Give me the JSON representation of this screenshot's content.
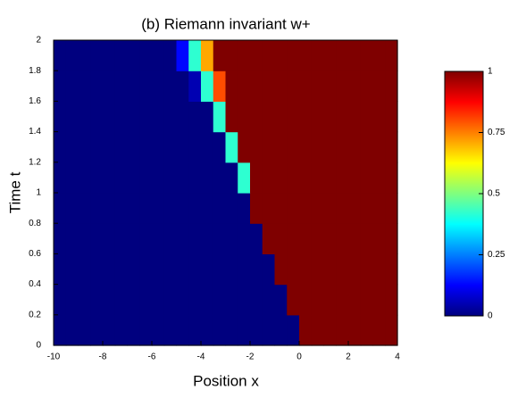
{
  "chart_data": {
    "type": "heatmap",
    "title": "(b) Riemann invariant w+",
    "x_label": "Position x",
    "y_label": "Time t",
    "xlim": [
      -10,
      4
    ],
    "ylim": [
      0,
      2
    ],
    "xticks": [
      -10,
      -8,
      -6,
      -4,
      -2,
      0,
      2,
      4
    ],
    "yticks": [
      0,
      0.2,
      0.4,
      0.6,
      0.8,
      1,
      1.2,
      1.4,
      1.6,
      1.8,
      2
    ],
    "colormap": [
      "#00007f",
      "#0000ff",
      "#007fff",
      "#00ffff",
      "#7fff7f",
      "#ffff00",
      "#ff7f00",
      "#ff0000",
      "#7f0000"
    ],
    "colorbar": {
      "lim": [
        0,
        1
      ],
      "ticks": [
        0,
        0.25,
        0.5,
        0.75,
        1
      ]
    },
    "values": [
      [
        0,
        0,
        0,
        0,
        0,
        0,
        0,
        0,
        0,
        0,
        0,
        0,
        0,
        0,
        0,
        0,
        0,
        0,
        0,
        0,
        1,
        1,
        1,
        1,
        1,
        1,
        1,
        1
      ],
      [
        0,
        0,
        0,
        0,
        0,
        0,
        0,
        0,
        0,
        0,
        0,
        0,
        0,
        0,
        0,
        0,
        0,
        0,
        0,
        1,
        1,
        1,
        1,
        1,
        1,
        1,
        1,
        1
      ],
      [
        0,
        0,
        0,
        0,
        0,
        0,
        0,
        0,
        0,
        0,
        0,
        0,
        0,
        0,
        0,
        0,
        0,
        0,
        1,
        1,
        1,
        1,
        1,
        1,
        1,
        1,
        1,
        1
      ],
      [
        0,
        0,
        0,
        0,
        0,
        0,
        0,
        0,
        0,
        0,
        0,
        0,
        0,
        0,
        0,
        0,
        0,
        1,
        1,
        1,
        1,
        1,
        1,
        1,
        1,
        1,
        1,
        1
      ],
      [
        0,
        0,
        0,
        0,
        0,
        0,
        0,
        0,
        0,
        0,
        0,
        0,
        0,
        0,
        0,
        0,
        1,
        1,
        1,
        1,
        1,
        1,
        1,
        1,
        1,
        1,
        1,
        1
      ],
      [
        0,
        0,
        0,
        0,
        0,
        0,
        0,
        0,
        0,
        0,
        0,
        0,
        0,
        0,
        0,
        0.42,
        1,
        1,
        1,
        1,
        1,
        1,
        1,
        1,
        1,
        1,
        1,
        1
      ],
      [
        0,
        0,
        0,
        0,
        0,
        0,
        0,
        0,
        0,
        0,
        0,
        0,
        0,
        0,
        0.42,
        1,
        1,
        1,
        1,
        1,
        1,
        1,
        1,
        1,
        1,
        1,
        1,
        1
      ],
      [
        0,
        0,
        0,
        0,
        0,
        0,
        0,
        0,
        0,
        0,
        0,
        0,
        0,
        0.42,
        1,
        1,
        1,
        1,
        1,
        1,
        1,
        1,
        1,
        1,
        1,
        1,
        1,
        1
      ],
      [
        0,
        0,
        0,
        0,
        0,
        0,
        0,
        0,
        0,
        0,
        0,
        0.05,
        0.42,
        0.8,
        1,
        1,
        1,
        1,
        1,
        1,
        1,
        1,
        1,
        1,
        1,
        1,
        1,
        1
      ],
      [
        0,
        0,
        0,
        0,
        0,
        0,
        0,
        0,
        0,
        0,
        0.13,
        0.42,
        0.71,
        1,
        1,
        1,
        1,
        1,
        1,
        1,
        1,
        1,
        1,
        1,
        1,
        1,
        1,
        1
      ]
    ]
  }
}
